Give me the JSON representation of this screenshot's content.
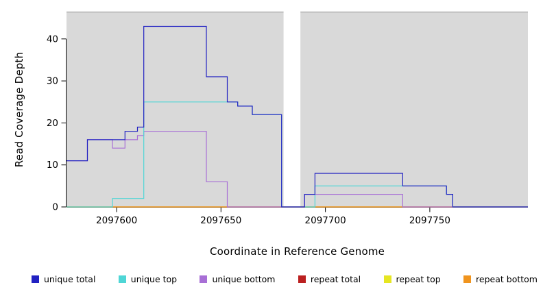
{
  "chart_data": {
    "type": "line",
    "subtype": "step",
    "title": "",
    "xlabel": "Coordinate in Reference Genome",
    "ylabel": "Read Coverage Depth",
    "xlim": [
      2097576,
      2097797
    ],
    "ylim": [
      0,
      46.5
    ],
    "x_ticks": [
      2097600,
      2097650,
      2097700,
      2097750
    ],
    "y_ticks": [
      0,
      10,
      20,
      30,
      40
    ],
    "grid": false,
    "legend_position": "bottom",
    "plot_background": "#d9d9d9",
    "gap_background": "#ffffff",
    "covered_regions": [
      [
        2097576,
        2097680
      ],
      [
        2097688,
        2097797
      ]
    ],
    "gap_regions": [
      [
        2097680,
        2097688
      ]
    ],
    "draw_order": [
      3,
      4,
      5,
      2,
      1,
      0
    ],
    "series": [
      {
        "name": "unique total",
        "color": "#2222c2",
        "steps": [
          [
            2097576,
            11
          ],
          [
            2097586,
            16
          ],
          [
            2097604,
            18
          ],
          [
            2097610,
            19
          ],
          [
            2097613,
            43
          ],
          [
            2097643,
            31
          ],
          [
            2097653,
            25
          ],
          [
            2097658,
            24
          ],
          [
            2097665,
            22
          ],
          [
            2097679,
            0
          ],
          [
            2097690,
            3
          ],
          [
            2097695,
            8
          ],
          [
            2097737,
            5
          ],
          [
            2097758,
            3
          ],
          [
            2097761,
            0
          ]
        ]
      },
      {
        "name": "unique top",
        "color": "#4fd6d6",
        "steps": [
          [
            2097576,
            0
          ],
          [
            2097598,
            2
          ],
          [
            2097613,
            25
          ],
          [
            2097658,
            24
          ],
          [
            2097665,
            22
          ],
          [
            2097679,
            0
          ],
          [
            2097695,
            5
          ],
          [
            2097758,
            3
          ],
          [
            2097761,
            0
          ]
        ]
      },
      {
        "name": "unique bottom",
        "color": "#a86fd6",
        "steps": [
          [
            2097576,
            11
          ],
          [
            2097586,
            16
          ],
          [
            2097598,
            14
          ],
          [
            2097604,
            16
          ],
          [
            2097610,
            17
          ],
          [
            2097613,
            18
          ],
          [
            2097643,
            6
          ],
          [
            2097653,
            0
          ],
          [
            2097690,
            3
          ],
          [
            2097737,
            0
          ]
        ]
      },
      {
        "name": "repeat total",
        "color": "#bb2020",
        "steps": [
          [
            2097576,
            0
          ]
        ]
      },
      {
        "name": "repeat top",
        "color": "#e6e622",
        "steps": [
          [
            2097576,
            0
          ]
        ]
      },
      {
        "name": "repeat bottom",
        "color": "#f0941e",
        "steps": [
          [
            2097576,
            0
          ]
        ]
      }
    ]
  }
}
